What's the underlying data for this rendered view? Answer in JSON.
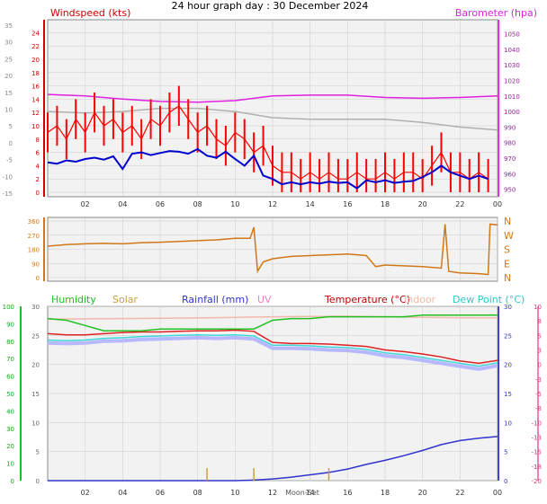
{
  "title": "24 hour graph day : 30 December 2024",
  "colors": {
    "wind": "#ff0000",
    "gust_line": "#0000cc",
    "baro": "#e020e0",
    "baro_shadow": "#b0b0b0",
    "dir": "#d07818",
    "humidity": "#20c020",
    "solar": "#c8a040",
    "rain": "#3333cc",
    "uv": "#f080c0",
    "temp": "#dd2020",
    "indoor": "#f0b8a8",
    "dew": "#40d8d8",
    "dew_band": "#b8b8ff",
    "panel_bg": "#f2f2f2",
    "grid": "#cccccc"
  },
  "chart_data": [
    {
      "type": "line",
      "name": "wind-barometer",
      "title": "24 hour graph day : 30 December 2024",
      "left_label": "Windspeed (kts)",
      "right_label": "Barometer (hpa)",
      "x_ticks": [
        "02",
        "04",
        "06",
        "08",
        "10",
        "12",
        "14",
        "16",
        "18",
        "20",
        "22",
        "00"
      ],
      "y_left_ticks": [
        "0",
        "2",
        "4",
        "6",
        "8",
        "10",
        "12",
        "14",
        "16",
        "18",
        "20",
        "22",
        "24"
      ],
      "y_left_gray_ticks": [
        "-15",
        "-10",
        "-5",
        "0",
        "5",
        "10",
        "15",
        "20",
        "25",
        "30",
        "35"
      ],
      "y_right_ticks": [
        "950",
        "960",
        "970",
        "980",
        "990",
        "1000",
        "1010",
        "1020",
        "1030",
        "1040",
        "1050"
      ],
      "xlim": [
        0,
        24
      ],
      "ylim_left": [
        0,
        25
      ],
      "ylim_right": [
        948,
        1055
      ],
      "series": [
        {
          "name": "Windspeed (kts)",
          "axis": "left",
          "x": [
            0,
            0.5,
            1,
            1.5,
            2,
            2.5,
            3,
            3.5,
            4,
            4.5,
            5,
            5.5,
            6,
            6.5,
            7,
            7.5,
            8,
            8.5,
            9,
            9.5,
            10,
            10.5,
            11,
            11.5,
            12,
            12.5,
            13,
            13.5,
            14,
            14.5,
            15,
            15.5,
            16,
            16.5,
            17,
            17.5,
            18,
            18.5,
            19,
            19.5,
            20,
            20.5,
            21,
            21.5,
            22,
            22.5,
            23,
            23.5
          ],
          "values": [
            9,
            10,
            8,
            11,
            9,
            12,
            10,
            11,
            9,
            10,
            8,
            11,
            10,
            12,
            13,
            11,
            9,
            10,
            8,
            7,
            9,
            8,
            6,
            7,
            4,
            3,
            3,
            2,
            3,
            2,
            3,
            2,
            2,
            3,
            2,
            2,
            3,
            2,
            3,
            3,
            2,
            4,
            6,
            3,
            3,
            2,
            3,
            2
          ]
        },
        {
          "name": "Wind trend",
          "axis": "left",
          "x": [
            0,
            0.5,
            1,
            1.5,
            2,
            2.5,
            3,
            3.5,
            4,
            4.5,
            5,
            5.5,
            6,
            6.5,
            7,
            7.5,
            8,
            8.5,
            9,
            9.5,
            10,
            10.5,
            11,
            11.5,
            12,
            12.5,
            13,
            13.5,
            14,
            14.5,
            15,
            15.5,
            16,
            16.5,
            17,
            17.5,
            18,
            18.5,
            19,
            19.5,
            20,
            20.5,
            21,
            21.5,
            22,
            22.5,
            23,
            23.5
          ],
          "values": [
            4.5,
            4.3,
            4.8,
            4.6,
            5,
            5.2,
            4.9,
            5.4,
            3.5,
            5.8,
            6,
            5.6,
            5.9,
            6.2,
            6.1,
            5.8,
            6.5,
            5.5,
            5.2,
            6.1,
            5,
            4,
            5.5,
            2.5,
            2,
            1.2,
            1.5,
            1.2,
            1.5,
            1.3,
            1.6,
            1.4,
            1.5,
            0.6,
            1.8,
            1.5,
            1.8,
            1.4,
            1.6,
            1.7,
            2.3,
            3,
            4,
            3,
            2.5,
            2,
            2.5,
            2
          ]
        },
        {
          "name": "Barometer (hpa)",
          "axis": "right",
          "x": [
            0,
            2,
            4,
            6,
            8,
            10,
            12,
            14,
            16,
            18,
            20,
            22,
            24
          ],
          "values": [
            1011,
            1010,
            1008,
            1006.5,
            1006,
            1007,
            1010,
            1010.5,
            1010.5,
            1009,
            1008.5,
            1009,
            1010
          ]
        },
        {
          "name": "Barometer shadow",
          "axis": "right",
          "x": [
            0,
            2,
            4,
            6,
            8,
            10,
            12,
            14,
            16,
            18,
            20,
            22,
            24
          ],
          "values": [
            1000,
            999,
            1000,
            1002,
            1002,
            1000,
            996,
            995,
            995,
            995,
            993,
            990,
            988
          ]
        }
      ]
    },
    {
      "type": "line",
      "name": "wind-direction",
      "y_left_ticks": [
        "0",
        "90",
        "180",
        "270",
        "360"
      ],
      "y_right_labels": [
        "N",
        "W",
        "S",
        "E",
        "N"
      ],
      "xlim": [
        0,
        24
      ],
      "ylim": [
        0,
        360
      ],
      "series": [
        {
          "name": "Wind direction",
          "x": [
            0,
            1,
            2,
            3,
            4,
            5,
            6,
            7,
            8,
            9,
            10,
            10.8,
            11,
            11.2,
            11.5,
            12,
            13,
            14,
            15,
            16,
            17,
            17.5,
            18,
            19,
            20,
            21,
            21.2,
            21.4,
            22,
            23,
            23.5,
            23.6,
            24
          ],
          "values": [
            200,
            210,
            215,
            218,
            215,
            222,
            225,
            230,
            235,
            240,
            250,
            250,
            320,
            40,
            100,
            120,
            135,
            140,
            145,
            150,
            140,
            70,
            80,
            75,
            70,
            60,
            340,
            40,
            30,
            25,
            20,
            340,
            335
          ]
        }
      ]
    },
    {
      "type": "line",
      "name": "temperature-humidity",
      "legend": [
        "Humidity",
        "Solar",
        "Rainfall (mm)",
        "UV",
        "Temperature (°C)",
        "Indoor",
        "Dew Point (°C)"
      ],
      "y_left_green_ticks": [
        "0",
        "10",
        "20",
        "30",
        "40",
        "50",
        "60",
        "70",
        "80",
        "90",
        "100"
      ],
      "y_left_gray_ticks": [
        "0",
        "5",
        "10",
        "15",
        "20",
        "25",
        "30"
      ],
      "y_right_ticks": [
        "-20",
        "-18",
        "-15",
        "-13",
        "-10",
        "-8",
        "-5",
        "-3",
        "0",
        "3",
        "5",
        "8",
        "10"
      ],
      "x_ticks": [
        "02",
        "04",
        "06",
        "08",
        "10",
        "12",
        "14",
        "16",
        "18",
        "20",
        "22",
        "00"
      ],
      "annotation": "Moon-Set",
      "xlim": [
        0,
        24
      ],
      "series": [
        {
          "name": "Humidity",
          "x": [
            0,
            1,
            2,
            3,
            4,
            5,
            6,
            7,
            8,
            9,
            10,
            11,
            12,
            13,
            14,
            15,
            16,
            17,
            18,
            19,
            20,
            21,
            22,
            23,
            24
          ],
          "values": [
            93,
            92,
            89,
            86,
            86,
            86,
            87,
            87,
            87,
            87,
            87,
            87,
            92,
            93,
            93,
            94,
            94,
            94,
            94,
            94,
            95,
            95,
            95,
            95,
            95
          ]
        },
        {
          "name": "Temperature (°C)",
          "x": [
            0,
            1,
            2,
            3,
            4,
            5,
            6,
            7,
            8,
            9,
            10,
            11,
            12,
            13,
            14,
            15,
            16,
            17,
            18,
            19,
            20,
            21,
            22,
            23,
            24
          ],
          "values": [
            5.3,
            5.1,
            5.1,
            5.3,
            5.5,
            5.6,
            5.6,
            5.7,
            5.8,
            5.8,
            5.9,
            5.7,
            3.8,
            3.6,
            3.6,
            3.5,
            3.3,
            3.1,
            2.5,
            2.2,
            1.8,
            1.3,
            0.6,
            0.2,
            0.7
          ]
        },
        {
          "name": "Dew Point (°C)",
          "x": [
            0,
            1,
            2,
            3,
            4,
            5,
            6,
            7,
            8,
            9,
            10,
            11,
            12,
            13,
            14,
            15,
            16,
            17,
            18,
            19,
            20,
            21,
            22,
            23,
            24
          ],
          "values": [
            4.2,
            4.1,
            4.2,
            4.5,
            4.6,
            4.8,
            4.9,
            5.0,
            5.1,
            5.0,
            5.1,
            4.9,
            3.3,
            3.3,
            3.2,
            3.0,
            2.9,
            2.6,
            2.0,
            1.7,
            1.2,
            0.7,
            0.2,
            -0.3,
            0.3
          ]
        },
        {
          "name": "Indoor",
          "x": [
            0,
            4,
            8,
            12,
            16,
            20,
            24
          ],
          "values": [
            7.8,
            7.9,
            8.0,
            8.2,
            8.3,
            8.1,
            8.0
          ]
        },
        {
          "name": "Rainfall (mm)",
          "x": [
            0,
            2,
            4,
            6,
            8,
            10,
            11,
            12,
            13,
            14,
            15,
            16,
            17,
            18,
            19,
            20,
            21,
            22,
            23,
            24
          ],
          "values": [
            0,
            0,
            0,
            0,
            0,
            0,
            0.1,
            0.3,
            0.6,
            1.0,
            1.4,
            2.0,
            2.8,
            3.5,
            4.3,
            5.2,
            6.2,
            6.9,
            7.3,
            7.6
          ]
        }
      ]
    }
  ]
}
